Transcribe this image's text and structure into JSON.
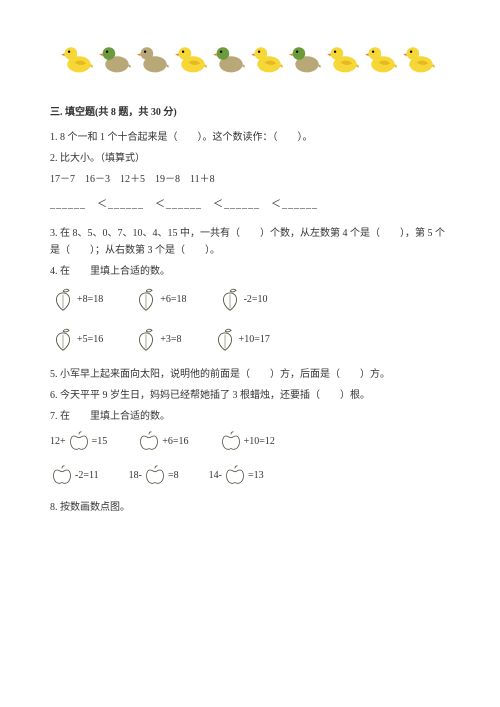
{
  "duck_colors": {
    "yellow_body": "#f6d738",
    "yellow_wing": "#e8b820",
    "yellow_beak": "#f08030",
    "green_body": "#6b9b3a",
    "grey_body": "#b8a878",
    "eye": "#000000"
  },
  "duck_pattern": [
    "yellow",
    "green",
    "grey",
    "yellow",
    "green",
    "yellow",
    "green",
    "yellow",
    "yellow",
    "yellow"
  ],
  "section_title": "三. 填空题(共 8 题，共 30 分)",
  "q1": "1. 8 个一和 1 个十合起来是（　　）。这个数读作：（　　）。",
  "q2": "2. 比大小。（填算式）",
  "q2_line": "17－7　16－3　12＋5　19－8　11＋8",
  "q2_blanks": "______　＜______　＜______　＜______　＜______",
  "q3": "3. 在 8、5、0、7、10、4、15 中，一共有（　　）个数，从左数第 4 个是（　　），第 5 个是（　　）；从右数第 3 个是（　　）。",
  "q4": "4. 在　　里填上合适的数。",
  "q4_rows": [
    [
      "+8=18",
      "+6=18",
      "-2=10"
    ],
    [
      "+5=16",
      "+3=8",
      "+10=17"
    ]
  ],
  "q5": "5. 小军早上起来面向太阳，说明他的前面是（　　）方，后面是（　　）方。",
  "q6": "6. 今天平平 9 岁生日，妈妈已经帮她插了 3 根蜡烛，还要插（　　）根。",
  "q7": "7. 在　　里填上合适的数。",
  "q7_rows": [
    [
      {
        "pre": "12+",
        "post": "=15"
      },
      {
        "pre": "",
        "post": "+6=16"
      },
      {
        "pre": "",
        "post": "+10=12"
      }
    ],
    [
      {
        "pre": "",
        "post": "-2=11"
      },
      {
        "pre": "18-",
        "post": "=8"
      },
      {
        "pre": "14-",
        "post": "=13"
      }
    ]
  ],
  "q8": "8. 按数画数点图。",
  "peach_svg": {
    "fill": "#ffffff",
    "stroke": "#555544",
    "leaf": "#ffffff"
  },
  "apple_svg": {
    "fill": "#ffffff",
    "stroke": "#555544"
  }
}
